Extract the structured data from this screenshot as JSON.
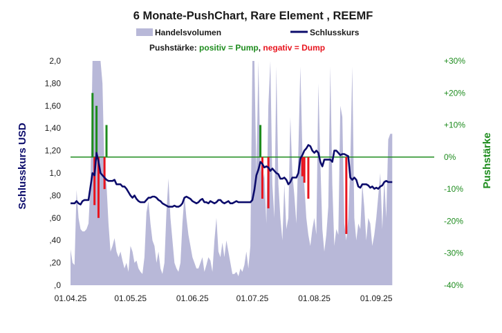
{
  "chart_data": {
    "type": "line",
    "title": "6 Monate-PushChart,  Rare Element , REEMF",
    "legend": {
      "volume_label": "Handelsvolumen",
      "close_label": "Schlusskurs"
    },
    "push_legend": {
      "prefix": "Pushstärke: ",
      "positive": "positiv = Pump",
      "separator": ", ",
      "negative": "negativ = Dump"
    },
    "ylabel": "Schlusskurs USD",
    "ylabel_right": "Pushstärke",
    "ylim": [
      0,
      2.0
    ],
    "ylim_right": [
      -40,
      30
    ],
    "y_ticks": [
      ",0",
      ",20",
      ",40",
      ",60",
      ",80",
      "1,0",
      "1,20",
      "1,40",
      "1,60",
      "1,80",
      "2,0"
    ],
    "y_ticks_right": [
      "-40%",
      "-30%",
      "-20%",
      "-10%",
      "0%",
      "+10%",
      "+20%",
      "+30%"
    ],
    "x_ticks": [
      "01.04.25",
      "01.05.25",
      "01.06.25",
      "01.07.25",
      "01.08.25",
      "01.09.25"
    ],
    "x_tick_days": [
      0,
      30,
      61,
      91,
      122,
      153
    ],
    "x_range_days": [
      0,
      182
    ],
    "zero_line_color": "#1e8c1e",
    "colors": {
      "volume": "#b8b8d8",
      "close": "#0b0b6b",
      "pump": "#1e8c1e",
      "dump": "#e8141e"
    },
    "close_series": [
      [
        0,
        0.73
      ],
      [
        1,
        0.73
      ],
      [
        2,
        0.73
      ],
      [
        3,
        0.75
      ],
      [
        4,
        0.73
      ],
      [
        5,
        0.72
      ],
      [
        6,
        0.75
      ],
      [
        7,
        0.76
      ],
      [
        8,
        0.76
      ],
      [
        9,
        0.76
      ],
      [
        10,
        0.88
      ],
      [
        11,
        1.0
      ],
      [
        12,
        0.98
      ],
      [
        13,
        1.18
      ],
      [
        14,
        1.1
      ],
      [
        15,
        1.0
      ],
      [
        16,
        0.98
      ],
      [
        17,
        0.96
      ],
      [
        18,
        0.94
      ],
      [
        19,
        0.93
      ],
      [
        20,
        0.93
      ],
      [
        21,
        0.93
      ],
      [
        22,
        0.94
      ],
      [
        23,
        0.9
      ],
      [
        24,
        0.9
      ],
      [
        25,
        0.9
      ],
      [
        26,
        0.88
      ],
      [
        27,
        0.88
      ],
      [
        28,
        0.86
      ],
      [
        29,
        0.83
      ],
      [
        30,
        0.8
      ],
      [
        31,
        0.78
      ],
      [
        32,
        0.8
      ],
      [
        33,
        0.77
      ],
      [
        34,
        0.75
      ],
      [
        35,
        0.74
      ],
      [
        36,
        0.74
      ],
      [
        37,
        0.74
      ],
      [
        38,
        0.76
      ],
      [
        39,
        0.78
      ],
      [
        40,
        0.78
      ],
      [
        41,
        0.79
      ],
      [
        42,
        0.79
      ],
      [
        43,
        0.78
      ],
      [
        44,
        0.76
      ],
      [
        45,
        0.75
      ],
      [
        46,
        0.73
      ],
      [
        47,
        0.72
      ],
      [
        48,
        0.71
      ],
      [
        49,
        0.7
      ],
      [
        50,
        0.7
      ],
      [
        51,
        0.7
      ],
      [
        52,
        0.71
      ],
      [
        53,
        0.7
      ],
      [
        54,
        0.7
      ],
      [
        55,
        0.71
      ],
      [
        56,
        0.73
      ],
      [
        57,
        0.78
      ],
      [
        58,
        0.79
      ],
      [
        59,
        0.78
      ],
      [
        60,
        0.77
      ],
      [
        61,
        0.75
      ],
      [
        62,
        0.74
      ],
      [
        63,
        0.73
      ],
      [
        64,
        0.74
      ],
      [
        65,
        0.76
      ],
      [
        66,
        0.77
      ],
      [
        67,
        0.74
      ],
      [
        68,
        0.74
      ],
      [
        69,
        0.73
      ],
      [
        70,
        0.75
      ],
      [
        71,
        0.74
      ],
      [
        72,
        0.73
      ],
      [
        73,
        0.74
      ],
      [
        74,
        0.76
      ],
      [
        75,
        0.76
      ],
      [
        76,
        0.74
      ],
      [
        77,
        0.73
      ],
      [
        78,
        0.74
      ],
      [
        79,
        0.75
      ],
      [
        80,
        0.73
      ],
      [
        81,
        0.73
      ],
      [
        82,
        0.74
      ],
      [
        83,
        0.75
      ],
      [
        84,
        0.74
      ],
      [
        85,
        0.74
      ],
      [
        86,
        0.74
      ],
      [
        87,
        0.74
      ],
      [
        88,
        0.74
      ],
      [
        89,
        0.74
      ],
      [
        90,
        0.74
      ],
      [
        91,
        0.76
      ],
      [
        92,
        0.85
      ],
      [
        93,
        0.98
      ],
      [
        94,
        1.03
      ],
      [
        95,
        1.1
      ],
      [
        96,
        1.08
      ],
      [
        97,
        1.05
      ],
      [
        98,
        1.06
      ],
      [
        99,
        1.05
      ],
      [
        100,
        1.02
      ],
      [
        101,
        1.04
      ],
      [
        102,
        1.02
      ],
      [
        103,
        1.0
      ],
      [
        104,
        0.99
      ],
      [
        105,
        0.95
      ],
      [
        106,
        0.95
      ],
      [
        107,
        0.96
      ],
      [
        108,
        0.94
      ],
      [
        109,
        0.9
      ],
      [
        110,
        0.92
      ],
      [
        111,
        0.96
      ],
      [
        112,
        0.96
      ],
      [
        113,
        0.96
      ],
      [
        114,
        1.0
      ],
      [
        115,
        1.13
      ],
      [
        116,
        1.16
      ],
      [
        117,
        1.2
      ],
      [
        118,
        1.22
      ],
      [
        119,
        1.25
      ],
      [
        120,
        1.24
      ],
      [
        121,
        1.2
      ],
      [
        122,
        1.18
      ],
      [
        123,
        1.2
      ],
      [
        124,
        1.18
      ],
      [
        125,
        1.1
      ],
      [
        126,
        1.06
      ],
      [
        127,
        1.12
      ],
      [
        128,
        1.12
      ],
      [
        129,
        1.12
      ],
      [
        130,
        1.12
      ],
      [
        131,
        1.1
      ],
      [
        132,
        1.2
      ],
      [
        133,
        1.2
      ],
      [
        134,
        1.18
      ],
      [
        135,
        1.16
      ],
      [
        136,
        1.17
      ],
      [
        137,
        1.17
      ],
      [
        138,
        1.16
      ],
      [
        139,
        1.15
      ],
      [
        140,
        0.96
      ],
      [
        141,
        0.94
      ],
      [
        142,
        0.96
      ],
      [
        143,
        0.94
      ],
      [
        144,
        0.88
      ],
      [
        145,
        0.87
      ],
      [
        146,
        0.9
      ],
      [
        147,
        0.9
      ],
      [
        148,
        0.9
      ],
      [
        149,
        0.89
      ],
      [
        150,
        0.87
      ],
      [
        151,
        0.88
      ],
      [
        152,
        0.86
      ],
      [
        153,
        0.87
      ],
      [
        154,
        0.86
      ],
      [
        155,
        0.88
      ],
      [
        156,
        0.89
      ],
      [
        157,
        0.92
      ],
      [
        158,
        0.93
      ],
      [
        159,
        0.92
      ],
      [
        160,
        0.92
      ],
      [
        161,
        0.92
      ]
    ],
    "volume_series": [
      [
        0,
        0.32
      ],
      [
        1,
        0.2
      ],
      [
        2,
        0.18
      ],
      [
        3,
        0.85
      ],
      [
        4,
        0.6
      ],
      [
        5,
        0.5
      ],
      [
        6,
        0.48
      ],
      [
        7,
        0.48
      ],
      [
        8,
        0.5
      ],
      [
        9,
        0.55
      ],
      [
        10,
        0.9
      ],
      [
        11,
        2.0
      ],
      [
        12,
        2.0
      ],
      [
        13,
        2.0
      ],
      [
        14,
        2.0
      ],
      [
        15,
        2.0
      ],
      [
        16,
        1.8
      ],
      [
        17,
        1.0
      ],
      [
        18,
        0.9
      ],
      [
        19,
        0.55
      ],
      [
        20,
        0.3
      ],
      [
        21,
        0.35
      ],
      [
        22,
        0.42
      ],
      [
        23,
        0.3
      ],
      [
        24,
        0.25
      ],
      [
        25,
        0.3
      ],
      [
        26,
        0.22
      ],
      [
        27,
        0.15
      ],
      [
        28,
        0.2
      ],
      [
        29,
        0.12
      ],
      [
        30,
        0.35
      ],
      [
        31,
        0.3
      ],
      [
        32,
        0.2
      ],
      [
        33,
        0.22
      ],
      [
        34,
        0.15
      ],
      [
        35,
        0.12
      ],
      [
        36,
        0.1
      ],
      [
        37,
        0.25
      ],
      [
        38,
        0.65
      ],
      [
        39,
        0.75
      ],
      [
        40,
        0.55
      ],
      [
        41,
        0.4
      ],
      [
        42,
        0.35
      ],
      [
        43,
        0.2
      ],
      [
        44,
        0.3
      ],
      [
        45,
        0.15
      ],
      [
        46,
        0.1
      ],
      [
        47,
        0.2
      ],
      [
        48,
        0.65
      ],
      [
        49,
        0.95
      ],
      [
        50,
        0.6
      ],
      [
        51,
        0.4
      ],
      [
        52,
        0.2
      ],
      [
        53,
        0.15
      ],
      [
        54,
        0.12
      ],
      [
        55,
        0.2
      ],
      [
        56,
        0.55
      ],
      [
        57,
        0.8
      ],
      [
        58,
        0.6
      ],
      [
        59,
        0.45
      ],
      [
        60,
        0.35
      ],
      [
        61,
        0.25
      ],
      [
        62,
        0.2
      ],
      [
        63,
        0.15
      ],
      [
        64,
        0.15
      ],
      [
        65,
        0.2
      ],
      [
        66,
        0.25
      ],
      [
        67,
        0.12
      ],
      [
        68,
        0.18
      ],
      [
        69,
        0.25
      ],
      [
        70,
        0.22
      ],
      [
        71,
        0.12
      ],
      [
        72,
        0.4
      ],
      [
        73,
        0.6
      ],
      [
        74,
        0.3
      ],
      [
        75,
        0.25
      ],
      [
        76,
        0.38
      ],
      [
        77,
        0.25
      ],
      [
        78,
        0.4
      ],
      [
        79,
        0.3
      ],
      [
        80,
        0.2
      ],
      [
        81,
        0.1
      ],
      [
        82,
        0.1
      ],
      [
        83,
        0.12
      ],
      [
        84,
        0.08
      ],
      [
        85,
        0.15
      ],
      [
        86,
        0.12
      ],
      [
        87,
        0.18
      ],
      [
        88,
        0.3
      ],
      [
        89,
        0.15
      ],
      [
        90,
        0.35
      ],
      [
        91,
        2.0
      ],
      [
        92,
        2.0
      ],
      [
        93,
        1.0
      ],
      [
        94,
        2.0
      ],
      [
        95,
        1.1
      ],
      [
        96,
        0.9
      ],
      [
        97,
        1.0
      ],
      [
        98,
        0.55
      ],
      [
        99,
        1.6
      ],
      [
        100,
        2.0
      ],
      [
        101,
        0.9
      ],
      [
        102,
        0.6
      ],
      [
        103,
        1.95
      ],
      [
        104,
        0.9
      ],
      [
        105,
        0.6
      ],
      [
        106,
        0.4
      ],
      [
        107,
        0.9
      ],
      [
        108,
        0.5
      ],
      [
        109,
        0.6
      ],
      [
        110,
        1.5
      ],
      [
        111,
        1.0
      ],
      [
        112,
        0.8
      ],
      [
        113,
        0.55
      ],
      [
        114,
        1.2
      ],
      [
        115,
        1.95
      ],
      [
        116,
        1.2
      ],
      [
        117,
        0.9
      ],
      [
        118,
        0.6
      ],
      [
        119,
        0.45
      ],
      [
        120,
        0.35
      ],
      [
        121,
        0.5
      ],
      [
        122,
        0.6
      ],
      [
        123,
        0.45
      ],
      [
        124,
        1.8
      ],
      [
        125,
        1.1
      ],
      [
        126,
        0.5
      ],
      [
        127,
        0.3
      ],
      [
        128,
        0.45
      ],
      [
        129,
        0.7
      ],
      [
        130,
        1.95
      ],
      [
        131,
        0.9
      ],
      [
        132,
        0.35
      ],
      [
        133,
        0.5
      ],
      [
        134,
        0.45
      ],
      [
        135,
        1.6
      ],
      [
        136,
        1.5
      ],
      [
        137,
        0.55
      ],
      [
        138,
        0.4
      ],
      [
        139,
        0.6
      ],
      [
        140,
        1.1
      ],
      [
        141,
        1.95
      ],
      [
        142,
        0.6
      ],
      [
        143,
        0.4
      ],
      [
        144,
        0.55
      ],
      [
        145,
        0.5
      ],
      [
        146,
        0.9
      ],
      [
        147,
        0.7
      ],
      [
        148,
        0.4
      ],
      [
        149,
        0.6
      ],
      [
        150,
        0.55
      ],
      [
        151,
        0.35
      ],
      [
        152,
        0.45
      ],
      [
        153,
        0.6
      ],
      [
        154,
        0.8
      ],
      [
        155,
        1.0
      ],
      [
        156,
        0.5
      ],
      [
        157,
        0.95
      ],
      [
        158,
        0.6
      ],
      [
        159,
        1.3
      ],
      [
        160,
        1.35
      ],
      [
        161,
        1.35
      ]
    ],
    "push_bars": [
      [
        11,
        20
      ],
      [
        12,
        -15
      ],
      [
        13,
        16
      ],
      [
        14,
        -19
      ],
      [
        15,
        0
      ],
      [
        17,
        -10
      ],
      [
        18,
        10
      ],
      [
        95,
        10
      ],
      [
        96,
        -13
      ],
      [
        99,
        -16
      ],
      [
        116,
        -6
      ],
      [
        117,
        -8
      ],
      [
        119,
        -13
      ],
      [
        138,
        -24
      ]
    ]
  }
}
